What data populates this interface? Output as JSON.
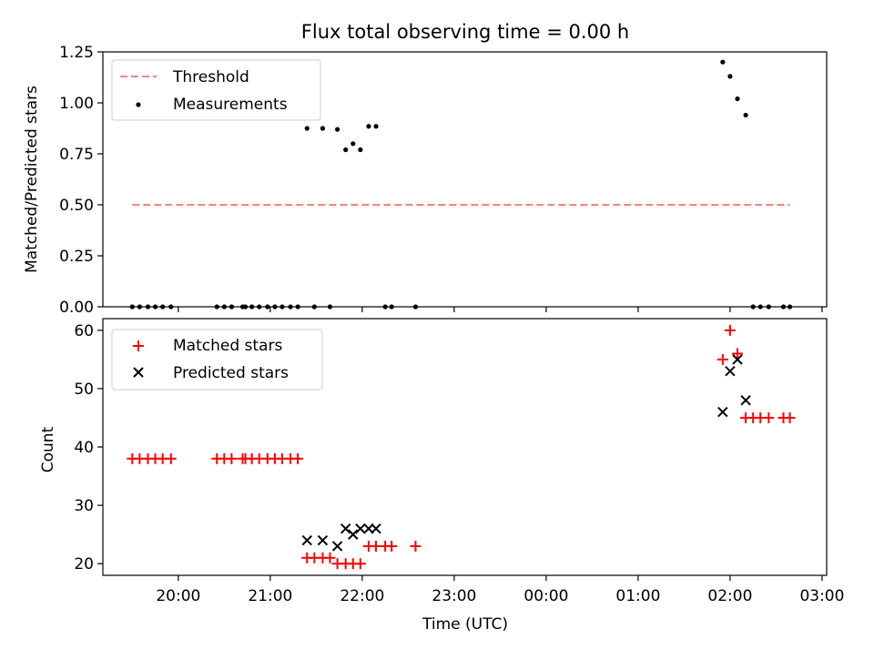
{
  "chart_data": [
    {
      "type": "scatter",
      "title": "Flux total observing time = 0.00 h",
      "xlabel": "",
      "ylabel": "Matched/Predicted stars",
      "xlim": [
        -0.82,
        7.05
      ],
      "ylim": [
        0,
        1.25
      ],
      "grid": false,
      "legend": "top-left",
      "x_ticks": [
        0,
        1,
        2,
        3,
        4,
        5,
        6,
        7
      ],
      "y_ticks": [
        0.0,
        0.25,
        0.5,
        0.75,
        1.0,
        1.25
      ],
      "y_tick_labels": [
        "0.00",
        "0.25",
        "0.50",
        "0.75",
        "1.00",
        "1.25"
      ],
      "series": [
        {
          "name": "Threshold",
          "kind": "dashed-line",
          "color": "#ff7f7f",
          "x": [
            -0.5,
            6.65
          ],
          "y": [
            0.5,
            0.5
          ]
        },
        {
          "name": "Measurements",
          "kind": "points",
          "color": "#000000",
          "points": [
            [
              -0.5,
              0
            ],
            [
              -0.42,
              0
            ],
            [
              -0.33,
              0
            ],
            [
              -0.25,
              0
            ],
            [
              -0.17,
              0
            ],
            [
              -0.08,
              0
            ],
            [
              0.42,
              0
            ],
            [
              0.5,
              0
            ],
            [
              0.58,
              0
            ],
            [
              0.7,
              0
            ],
            [
              0.73,
              0
            ],
            [
              0.8,
              0
            ],
            [
              0.88,
              0
            ],
            [
              0.97,
              0
            ],
            [
              1.05,
              0
            ],
            [
              1.13,
              0
            ],
            [
              1.22,
              0
            ],
            [
              1.3,
              0
            ],
            [
              1.4,
              0.875
            ],
            [
              1.48,
              0
            ],
            [
              1.57,
              0.875
            ],
            [
              1.65,
              0
            ],
            [
              1.73,
              0.87
            ],
            [
              1.82,
              0.77
            ],
            [
              1.9,
              0.8
            ],
            [
              1.98,
              0.77
            ],
            [
              2.07,
              0.885
            ],
            [
              2.15,
              0.885
            ],
            [
              2.25,
              0
            ],
            [
              2.32,
              0
            ],
            [
              2.58,
              0
            ],
            [
              5.92,
              1.2
            ],
            [
              6.0,
              1.13
            ],
            [
              6.08,
              1.02
            ],
            [
              6.17,
              0.94
            ],
            [
              6.25,
              0
            ],
            [
              6.33,
              0
            ],
            [
              6.42,
              0
            ],
            [
              6.58,
              0
            ],
            [
              6.65,
              0
            ]
          ]
        }
      ]
    },
    {
      "type": "scatter",
      "title": "",
      "xlabel": "Time (UTC)",
      "ylabel": "Count",
      "xlim": [
        -0.82,
        7.05
      ],
      "ylim": [
        18,
        62
      ],
      "grid": false,
      "legend": "top-left",
      "x_ticks": [
        0,
        1,
        2,
        3,
        4,
        5,
        6,
        7
      ],
      "x_tick_labels": [
        "20:00",
        "21:00",
        "22:00",
        "23:00",
        "00:00",
        "01:00",
        "02:00",
        "03:00"
      ],
      "y_ticks": [
        20,
        30,
        40,
        50,
        60
      ],
      "y_tick_labels": [
        "20",
        "30",
        "40",
        "50",
        "60"
      ],
      "series": [
        {
          "name": "Matched stars",
          "marker": "plus",
          "color": "#ff0000",
          "points": [
            [
              -0.5,
              38
            ],
            [
              -0.42,
              38
            ],
            [
              -0.33,
              38
            ],
            [
              -0.25,
              38
            ],
            [
              -0.17,
              38
            ],
            [
              -0.08,
              38
            ],
            [
              0.42,
              38
            ],
            [
              0.5,
              38
            ],
            [
              0.58,
              38
            ],
            [
              0.7,
              38
            ],
            [
              0.73,
              38
            ],
            [
              0.8,
              38
            ],
            [
              0.88,
              38
            ],
            [
              0.97,
              38
            ],
            [
              1.05,
              38
            ],
            [
              1.13,
              38
            ],
            [
              1.22,
              38
            ],
            [
              1.3,
              38
            ],
            [
              1.4,
              21
            ],
            [
              1.48,
              21
            ],
            [
              1.57,
              21
            ],
            [
              1.65,
              21
            ],
            [
              1.73,
              20
            ],
            [
              1.82,
              20
            ],
            [
              1.9,
              20
            ],
            [
              1.98,
              20
            ],
            [
              2.07,
              23
            ],
            [
              2.15,
              23
            ],
            [
              2.25,
              23
            ],
            [
              2.32,
              23
            ],
            [
              2.58,
              23
            ],
            [
              5.92,
              55
            ],
            [
              6.0,
              60
            ],
            [
              6.08,
              56
            ],
            [
              6.17,
              45
            ],
            [
              6.25,
              45
            ],
            [
              6.33,
              45
            ],
            [
              6.42,
              45
            ],
            [
              6.58,
              45
            ],
            [
              6.65,
              45
            ]
          ]
        },
        {
          "name": "Predicted stars",
          "marker": "x",
          "color": "#000000",
          "points": [
            [
              1.4,
              24
            ],
            [
              1.57,
              24
            ],
            [
              1.73,
              23
            ],
            [
              1.82,
              26
            ],
            [
              1.9,
              25
            ],
            [
              1.98,
              26
            ],
            [
              2.07,
              26
            ],
            [
              2.15,
              26
            ],
            [
              5.92,
              46
            ],
            [
              6.0,
              53
            ],
            [
              6.08,
              55
            ],
            [
              6.17,
              48
            ]
          ]
        }
      ]
    }
  ]
}
